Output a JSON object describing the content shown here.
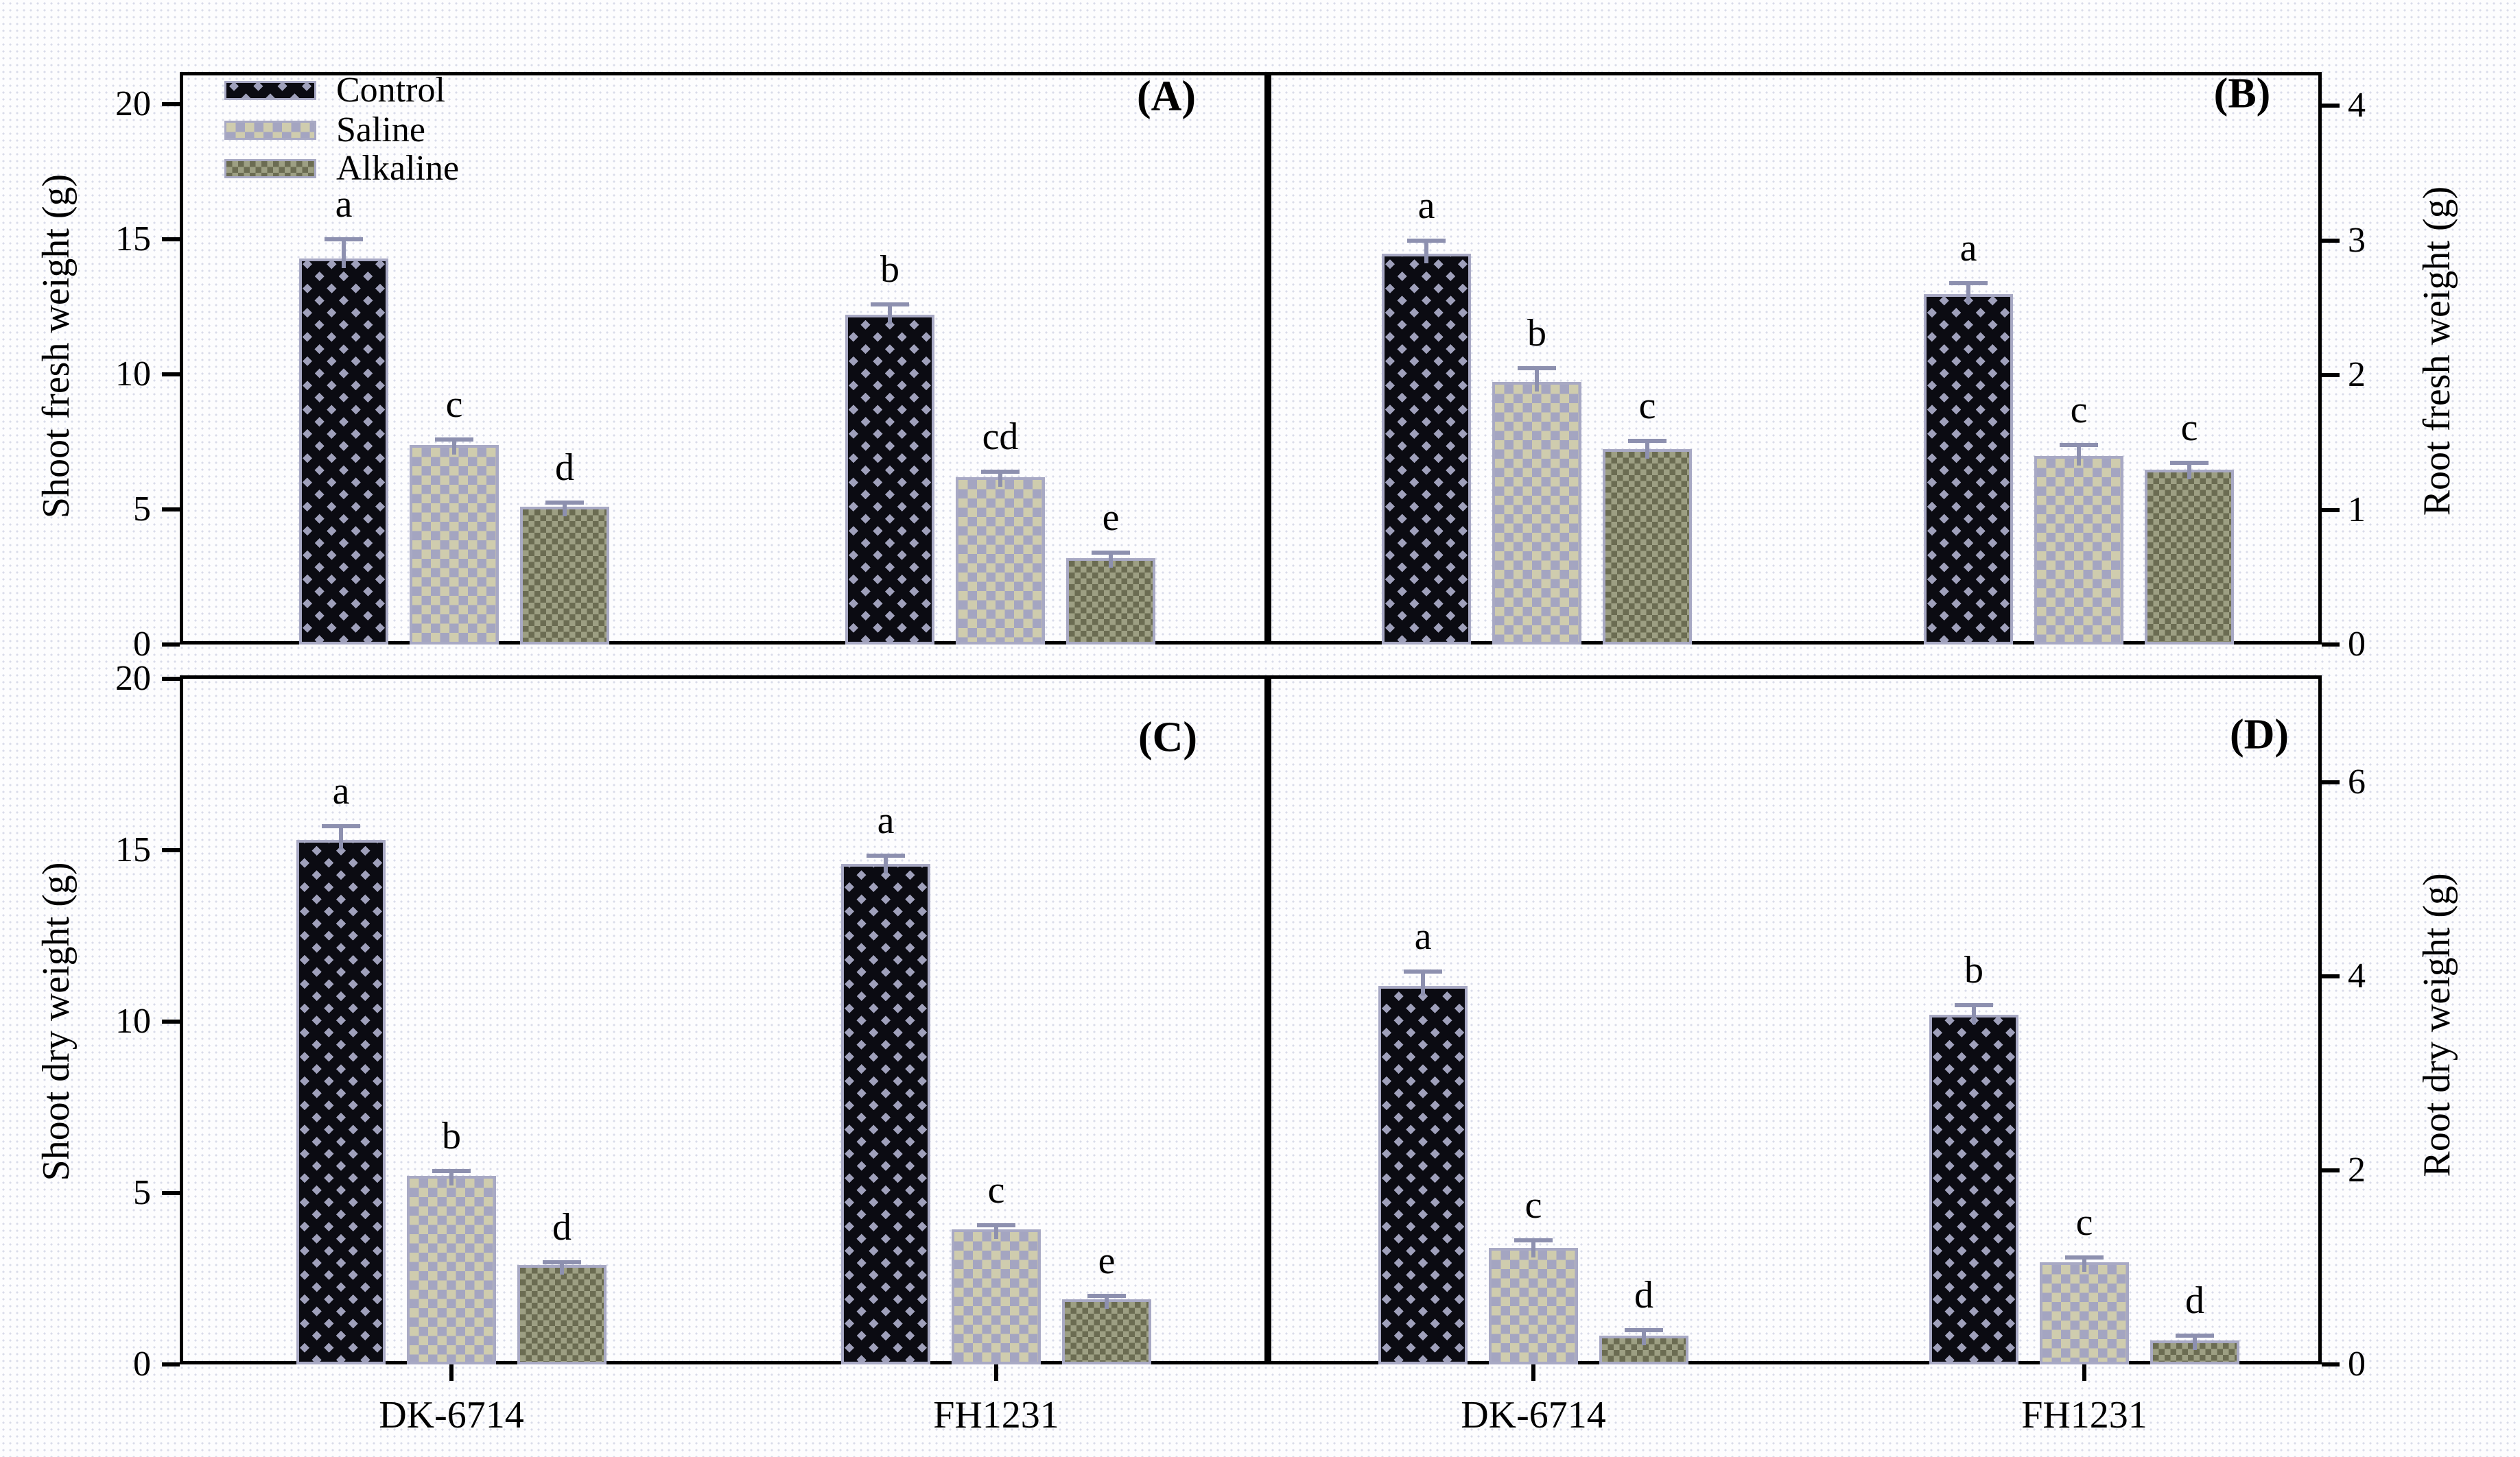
{
  "figure": {
    "x_groups": [
      "DK-6714",
      "FH1231"
    ],
    "legend": {
      "items": [
        {
          "key": "control",
          "label": "Control"
        },
        {
          "key": "saline",
          "label": "Saline"
        },
        {
          "key": "alkaline",
          "label": "Alkaline"
        }
      ]
    },
    "colors": {
      "panel_border": "#000000",
      "bar_outline": "#a8a9c4",
      "control_black": "#0b0b12",
      "control_lavender": "#9fa0bb",
      "saline_beige": "#cfccae",
      "saline_gray": "#a4a5c1",
      "alkaline_olive": "#6b6c52",
      "alkaline_light": "#9d9f83",
      "error_bar": "#8d90af",
      "background": "#fdfdfe",
      "dot_texture": "#d9dce9",
      "text": "#000000"
    }
  },
  "chart_data": [
    {
      "type": "bar",
      "panel": "A",
      "panel_label": "(A)",
      "ylabel": "Shoot fresh weight (g)",
      "axis_side": "left",
      "ylim": [
        0,
        21.2
      ],
      "yticks": [
        0,
        5,
        10,
        15,
        20
      ],
      "categories": [
        "DK-6714",
        "FH1231"
      ],
      "series": [
        {
          "name": "Control",
          "values": [
            14.3,
            12.2
          ],
          "errors": [
            0.7,
            0.4
          ],
          "letters": [
            "a",
            "b"
          ]
        },
        {
          "name": "Saline",
          "values": [
            7.4,
            6.2
          ],
          "errors": [
            0.2,
            0.2
          ],
          "letters": [
            "c",
            "cd"
          ]
        },
        {
          "name": "Alkaline",
          "values": [
            5.1,
            3.2
          ],
          "errors": [
            0.15,
            0.2
          ],
          "letters": [
            "d",
            "e"
          ]
        }
      ]
    },
    {
      "type": "bar",
      "panel": "B",
      "panel_label": "(B)",
      "ylabel": "Root fresh weight (g)",
      "axis_side": "right",
      "ylim": [
        0,
        4.25
      ],
      "yticks": [
        0,
        1,
        2,
        3,
        4
      ],
      "categories": [
        "DK-6714",
        "FH1231"
      ],
      "series": [
        {
          "name": "Control",
          "values": [
            2.9,
            2.6
          ],
          "errors": [
            0.1,
            0.08
          ],
          "letters": [
            "a",
            "a"
          ]
        },
        {
          "name": "Saline",
          "values": [
            1.95,
            1.4
          ],
          "errors": [
            0.1,
            0.08
          ],
          "letters": [
            "b",
            "c"
          ]
        },
        {
          "name": "Alkaline",
          "values": [
            1.45,
            1.3
          ],
          "errors": [
            0.06,
            0.05
          ],
          "letters": [
            "c",
            "c"
          ]
        }
      ]
    },
    {
      "type": "bar",
      "panel": "C",
      "panel_label": "(C)",
      "ylabel": "Shoot dry weight (g)",
      "axis_side": "left",
      "ylim": [
        0,
        20.1
      ],
      "yticks": [
        0,
        5,
        10,
        15,
        20
      ],
      "categories": [
        "DK-6714",
        "FH1231"
      ],
      "series": [
        {
          "name": "Control",
          "values": [
            15.3,
            14.6
          ],
          "errors": [
            0.4,
            0.25
          ],
          "letters": [
            "a",
            "a"
          ]
        },
        {
          "name": "Saline",
          "values": [
            5.5,
            3.95
          ],
          "errors": [
            0.15,
            0.12
          ],
          "letters": [
            "b",
            "c"
          ]
        },
        {
          "name": "Alkaline",
          "values": [
            2.9,
            1.9
          ],
          "errors": [
            0.08,
            0.1
          ],
          "letters": [
            "d",
            "e"
          ]
        }
      ]
    },
    {
      "type": "bar",
      "panel": "D",
      "panel_label": "(D)",
      "ylabel": "Root dry weight (g)",
      "axis_side": "right",
      "ylim": [
        0,
        7.1
      ],
      "yticks": [
        0,
        2,
        4,
        6
      ],
      "categories": [
        "DK-6714",
        "FH1231"
      ],
      "series": [
        {
          "name": "Control",
          "values": [
            3.9,
            3.6
          ],
          "errors": [
            0.15,
            0.1
          ],
          "letters": [
            "a",
            "b"
          ]
        },
        {
          "name": "Saline",
          "values": [
            1.2,
            1.05
          ],
          "errors": [
            0.08,
            0.05
          ],
          "letters": [
            "c",
            "c"
          ]
        },
        {
          "name": "Alkaline",
          "values": [
            0.3,
            0.25
          ],
          "errors": [
            0.05,
            0.05
          ],
          "letters": [
            "d",
            "d"
          ]
        }
      ]
    }
  ]
}
